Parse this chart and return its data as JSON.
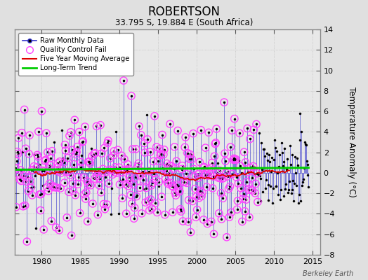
{
  "title": "ROBERTSON",
  "subtitle": "33.795 S, 19.884 E (South Africa)",
  "credit": "Berkeley Earth",
  "ylabel": "Temperature Anomaly (°C)",
  "ylim": [
    -8,
    14
  ],
  "xlim": [
    1976.5,
    2016
  ],
  "yticks": [
    -8,
    -6,
    -4,
    -2,
    0,
    2,
    4,
    6,
    8,
    10,
    12,
    14
  ],
  "xticks": [
    1980,
    1985,
    1990,
    1995,
    2000,
    2005,
    2010,
    2015
  ],
  "bg_color": "#e0e0e0",
  "plot_bg": "#e8e8e8",
  "raw_color": "#3333cc",
  "qc_color": "#ff44ff",
  "ma_color": "#dd0000",
  "trend_color": "#00cc00",
  "seed": 17,
  "start_year": 1976.583,
  "end_year": 2014.5,
  "qc_end_year": 2008.0,
  "trend_value": 0.4
}
